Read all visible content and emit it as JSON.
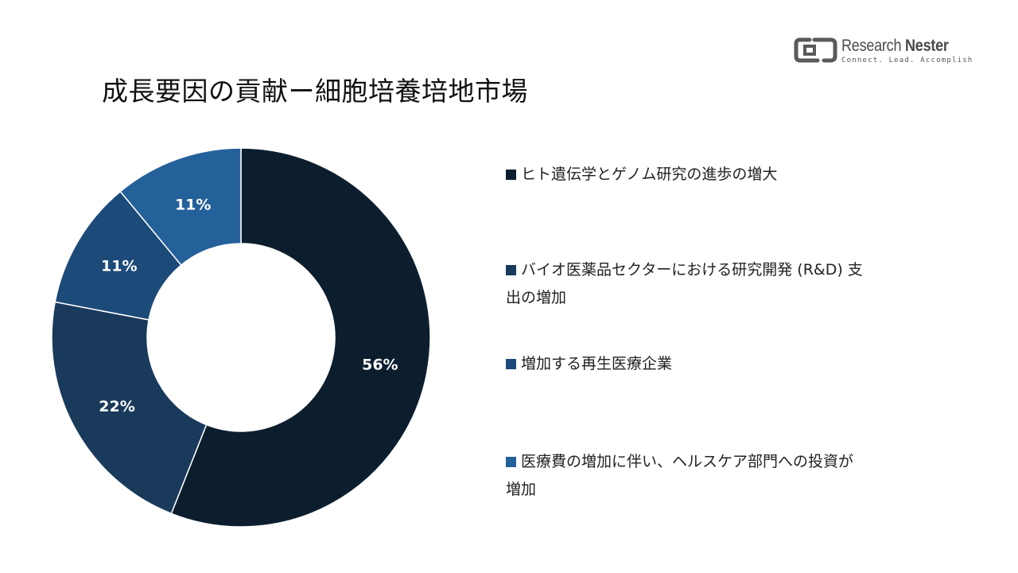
{
  "logo": {
    "name_part1": "Research",
    "name_part2": "Nester",
    "tagline": "Connect. Lead. Accomplish"
  },
  "title": "成長要因の貢献ー細胞培養培地市場",
  "colors": {
    "series": [
      "#0c1e2e",
      "#1a3a5c",
      "#1c4a79",
      "#24609a"
    ],
    "label": "#ffffff",
    "text": "#222222"
  },
  "chart_data": {
    "type": "pie",
    "donut": true,
    "title": "",
    "legend_position": "right",
    "categories": [
      "ヒト遺伝学とゲノム研究の進歩の増大",
      "バイオ医薬品セクターにおける研究開発 (R&D) 支出の増加",
      "増加する再生医療企業",
      "医療費の増加に伴い、ヘルスケア部門への投資が増加"
    ],
    "values": [
      56,
      22,
      11,
      11
    ],
    "value_labels": [
      "56%",
      "22%",
      "11%",
      "11%"
    ]
  },
  "legend": [
    {
      "lines": [
        "ヒト遺伝学とゲノム研究の進歩の増大"
      ]
    },
    {
      "lines": [
        "バイオ医薬品セクターにおける研究開発 (R&D) 支",
        "出の増加"
      ]
    },
    {
      "lines": [
        "増加する再生医療企業"
      ]
    },
    {
      "lines": [
        "医療費の増加に伴い、ヘルスケア部門への投資が",
        "増加"
      ]
    }
  ]
}
